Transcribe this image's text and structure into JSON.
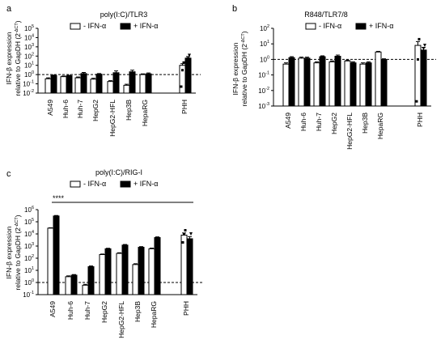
{
  "chart_data": [
    {
      "type": "bar",
      "panel_letter": "a",
      "title": "poly(I:C)/TLR3",
      "ylabel": "IFN-β expression",
      "ylabel2": "relative to GapDH (2",
      "ylabel2_sup": "-ΔCT",
      "ylabel2_end": ")",
      "yscale": "log",
      "ylim_exp": [
        -2,
        5
      ],
      "ytick_exps": [
        -2,
        -1,
        0,
        1,
        2,
        3,
        4,
        5
      ],
      "reference_line": 1,
      "categories": [
        "A549",
        "Huh-6",
        "Huh-7",
        "HepG2",
        "HepG2-HFL",
        "Hep3B",
        "HepaRG",
        "PHH"
      ],
      "series": [
        {
          "name": "- IFN-α",
          "color": "#ffffff",
          "values": [
            0.35,
            0.6,
            0.45,
            0.32,
            0.18,
            0.07,
            1.0,
            10.0
          ],
          "errors": [
            0.1,
            0.1,
            0.1,
            0.08,
            0.04,
            0.02,
            0.2,
            5.0
          ]
        },
        {
          "name": "+ IFN-α",
          "color": "#000000",
          "values": [
            0.8,
            0.75,
            1.3,
            1.1,
            1.6,
            2.0,
            1.2,
            60.0
          ],
          "errors": [
            0.1,
            0.1,
            0.4,
            0.2,
            0.9,
            1.0,
            0.3,
            30.0
          ]
        }
      ],
      "phh_points": {
        "minus": [
          0.05,
          3.0,
          20.0
        ],
        "plus": [
          8.0,
          50.0,
          120.0
        ]
      }
    },
    {
      "type": "bar",
      "panel_letter": "b",
      "title": "R848/TLR7/8",
      "ylabel": "IFN-β expression",
      "ylabel2": "relative to GapDH (2",
      "ylabel2_sup": "-ΔCT",
      "ylabel2_end": ")",
      "yscale": "log",
      "ylim_exp": [
        -3,
        2
      ],
      "ytick_exps": [
        -3,
        -2,
        -1,
        0,
        1,
        2
      ],
      "reference_line": 1,
      "categories": [
        "A549",
        "Huh-6",
        "Huh-7",
        "HepG2",
        "HepG2-HFL",
        "Hep3B",
        "HepaRG",
        "PHH"
      ],
      "series": [
        {
          "name": "- IFN-α",
          "color": "#ffffff",
          "values": [
            0.5,
            1.2,
            0.6,
            0.7,
            0.8,
            0.5,
            3.0,
            8.0
          ],
          "errors": [
            0.1,
            0.2,
            0.1,
            0.1,
            0.1,
            0.1,
            0.3,
            6.0
          ]
        },
        {
          "name": "+ IFN-α",
          "color": "#000000",
          "values": [
            1.3,
            1.2,
            1.5,
            1.6,
            0.6,
            0.6,
            1.0,
            4.0
          ],
          "errors": [
            0.2,
            0.2,
            0.2,
            0.3,
            0.1,
            0.1,
            0.1,
            2.0
          ]
        }
      ],
      "phh_points": {
        "minus": [
          0.002,
          1.0,
          20.0
        ],
        "plus": [
          1.0,
          5.0,
          8.0
        ]
      }
    },
    {
      "type": "bar",
      "panel_letter": "c",
      "title": "poly(I:C)/RIG-I",
      "ylabel": "IFN-β expression",
      "ylabel2": "relative to GapDH (2",
      "ylabel2_sup": "-ΔCT",
      "ylabel2_end": ")",
      "yscale": "log",
      "ylim_exp": [
        -1,
        6
      ],
      "ytick_exps": [
        -1,
        0,
        1,
        2,
        3,
        4,
        5,
        6
      ],
      "reference_line": 1,
      "significance": "****",
      "categories": [
        "A549",
        "Huh-6",
        "Huh-7",
        "HepG2",
        "HepG2-HFL",
        "Hep3B",
        "HepaRG",
        "PHH"
      ],
      "series": [
        {
          "name": "- IFN-α",
          "color": "#ffffff",
          "values": [
            30000,
            3.0,
            0.6,
            200,
            250,
            30,
            600,
            8000
          ],
          "errors": [
            2000,
            0.5,
            0.1,
            20,
            30,
            5,
            80,
            4000
          ]
        },
        {
          "name": "+ IFN-α",
          "color": "#000000",
          "values": [
            300000,
            4.0,
            20,
            600,
            1200,
            800,
            5000,
            4000
          ],
          "errors": [
            30000,
            0.5,
            3,
            60,
            150,
            100,
            700,
            2000
          ]
        }
      ],
      "phh_points": {
        "minus": [
          2000,
          10000,
          20000
        ],
        "plus": [
          2.0,
          1000,
          10000
        ]
      }
    }
  ]
}
